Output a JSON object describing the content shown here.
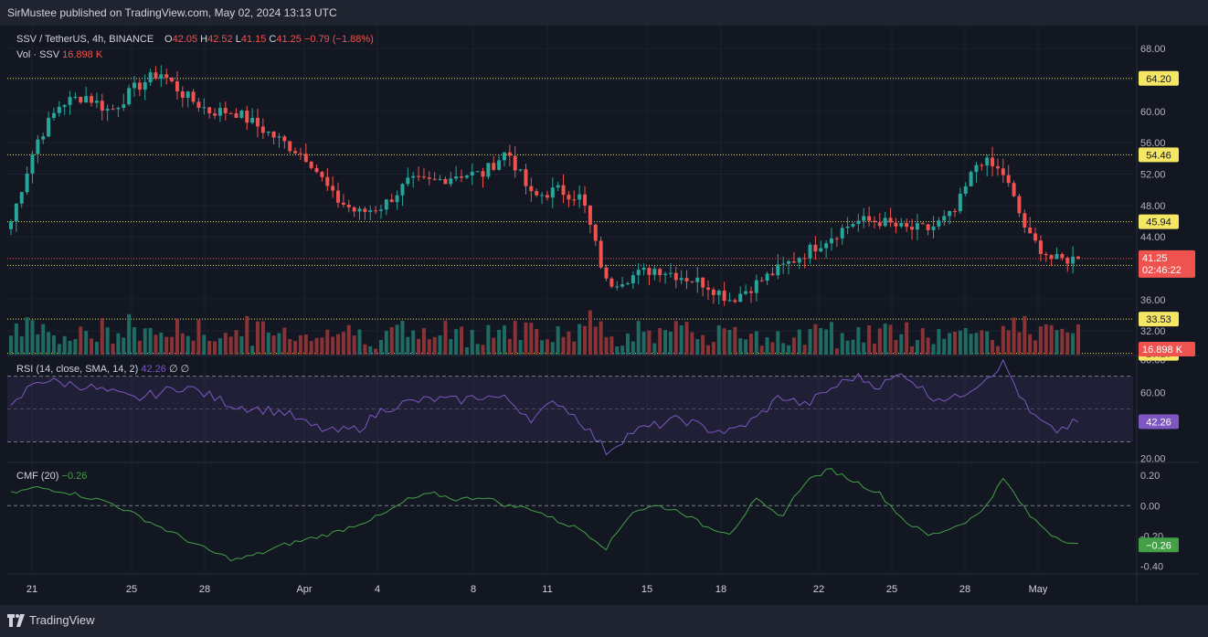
{
  "header": {
    "publisher_text": "SirMustee published on TradingView.com, May 02, 2024 13:13 UTC"
  },
  "legend": {
    "symbol": "SSV / TetherUS, 4h, BINANCE",
    "o_label": "O",
    "o_value": "42.05",
    "h_label": "H",
    "h_value": "42.52",
    "l_label": "L",
    "l_value": "41.15",
    "c_label": "C",
    "c_value": "41.25",
    "change": "−0.79 (−1.88%)",
    "vol_label": "Vol · SSV",
    "vol_value": "16.898 K"
  },
  "rsi_legend": {
    "label": "RSI (14, close, SMA, 14, 2)",
    "value": "42.26",
    "extra": "∅ ∅"
  },
  "cmf_legend": {
    "label": "CMF (20)",
    "value": "−0.26"
  },
  "price_badges": {
    "current": "41.25",
    "countdown": "02:46:22",
    "volume": "16.898 K",
    "rsi": "42.26",
    "cmf": "−0.26"
  },
  "footer": {
    "brand": "TradingView"
  },
  "colors": {
    "up": "#26a69a",
    "down": "#ef5350",
    "level": "#f5e663",
    "rsi": "#7e57c2",
    "cmf": "#43a047",
    "bg": "#131722"
  },
  "chart_data": [
    {
      "type": "candlestick",
      "title": "SSV / TetherUS, 4h, BINANCE",
      "ylim": [
        29,
        70
      ],
      "yticks": [
        "68.00",
        "64.00",
        "60.00",
        "56.00",
        "52.00",
        "48.00",
        "44.00",
        "40.00",
        "36.00",
        "32.00"
      ],
      "xticks": [
        "21",
        "25",
        "28",
        "Apr",
        "4",
        "8",
        "11",
        "15",
        "18",
        "22",
        "25",
        "28",
        "May"
      ],
      "levels": [
        "64.20",
        "54.46",
        "45.94",
        "40.37",
        "33.53",
        "29.16"
      ],
      "last_price": 41.25,
      "close_path": [
        {
          "x": "Mar 20",
          "y": 46
        },
        {
          "x": "Mar 21",
          "y": 56
        },
        {
          "x": "Mar 22",
          "y": 61
        },
        {
          "x": "Mar 23",
          "y": 62
        },
        {
          "x": "Mar 24",
          "y": 60
        },
        {
          "x": "Mar 25",
          "y": 63
        },
        {
          "x": "Mar 26",
          "y": 65
        },
        {
          "x": "Mar 27",
          "y": 62
        },
        {
          "x": "Mar 28",
          "y": 60
        },
        {
          "x": "Mar 29",
          "y": 60
        },
        {
          "x": "Mar 30",
          "y": 58
        },
        {
          "x": "Mar 31",
          "y": 56
        },
        {
          "x": "Apr 1",
          "y": 54
        },
        {
          "x": "Apr 2",
          "y": 49
        },
        {
          "x": "Apr 3",
          "y": 47
        },
        {
          "x": "Apr 4",
          "y": 48
        },
        {
          "x": "Apr 5",
          "y": 51
        },
        {
          "x": "Apr 6",
          "y": 51
        },
        {
          "x": "Apr 7",
          "y": 52
        },
        {
          "x": "Apr 8",
          "y": 52
        },
        {
          "x": "Apr 9",
          "y": 55
        },
        {
          "x": "Apr 10",
          "y": 49
        },
        {
          "x": "Apr 11",
          "y": 50
        },
        {
          "x": "Apr 12",
          "y": 49
        },
        {
          "x": "Apr 13",
          "y": 38
        },
        {
          "x": "Apr 14",
          "y": 39
        },
        {
          "x": "Apr 15",
          "y": 40
        },
        {
          "x": "Apr 16",
          "y": 39
        },
        {
          "x": "Apr 17",
          "y": 38
        },
        {
          "x": "Apr 18",
          "y": 36
        },
        {
          "x": "Apr 19",
          "y": 38
        },
        {
          "x": "Apr 20",
          "y": 40
        },
        {
          "x": "Apr 21",
          "y": 42
        },
        {
          "x": "Apr 22",
          "y": 44
        },
        {
          "x": "Apr 23",
          "y": 46
        },
        {
          "x": "Apr 24",
          "y": 46
        },
        {
          "x": "Apr 25",
          "y": 45
        },
        {
          "x": "Apr 26",
          "y": 45
        },
        {
          "x": "Apr 27",
          "y": 47
        },
        {
          "x": "Apr 28",
          "y": 54
        },
        {
          "x": "Apr 29",
          "y": 52
        },
        {
          "x": "Apr 30",
          "y": 44
        },
        {
          "x": "May 1",
          "y": 41
        },
        {
          "x": "May 2",
          "y": 41.25
        }
      ]
    },
    {
      "type": "bar",
      "title": "Vol · SSV",
      "last_value": "16.898 K"
    },
    {
      "type": "line",
      "title": "RSI (14, close, SMA, 14, 2)",
      "ylim": [
        18,
        82
      ],
      "yticks": [
        "80.00",
        "60.00",
        "40.00",
        "20.00"
      ],
      "bands": [
        30,
        70
      ],
      "series": [
        {
          "name": "RSI",
          "values": [
            50,
            68,
            66,
            64,
            60,
            56,
            60,
            64,
            58,
            52,
            50,
            48,
            40,
            36,
            38,
            50,
            54,
            56,
            55,
            58,
            56,
            44,
            55,
            42,
            24,
            36,
            40,
            44,
            38,
            36,
            44,
            58,
            52,
            62,
            70,
            64,
            72,
            58,
            56,
            66,
            78,
            48,
            36,
            42.26
          ]
        }
      ]
    },
    {
      "type": "line",
      "title": "CMF (20)",
      "ylim": [
        -0.44,
        0.28
      ],
      "yticks": [
        "0.20",
        "0.00",
        "-0.20",
        "-0.40"
      ],
      "series": [
        {
          "name": "CMF",
          "values": [
            0.08,
            0.12,
            0.1,
            0.06,
            0.02,
            -0.06,
            -0.14,
            -0.22,
            -0.3,
            -0.36,
            -0.32,
            -0.26,
            -0.22,
            -0.18,
            -0.12,
            -0.06,
            0.04,
            0.08,
            0.04,
            0.06,
            0.0,
            -0.02,
            -0.1,
            -0.16,
            -0.28,
            -0.04,
            0.0,
            -0.04,
            -0.14,
            -0.18,
            0.04,
            -0.08,
            0.16,
            0.24,
            0.16,
            0.08,
            -0.1,
            -0.2,
            -0.14,
            -0.06,
            0.18,
            -0.06,
            -0.2,
            -0.26
          ]
        }
      ]
    }
  ]
}
